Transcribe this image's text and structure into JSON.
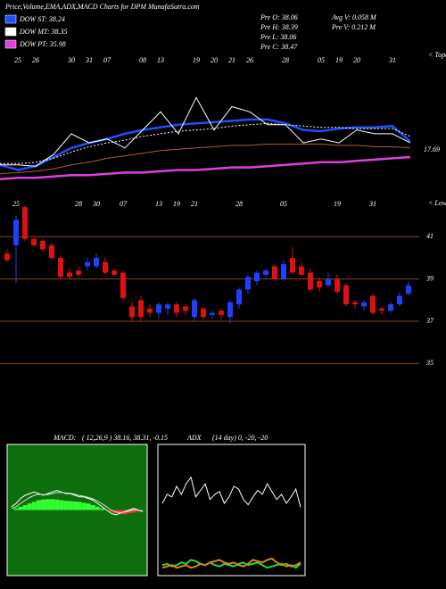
{
  "chart_data": [
    {
      "type": "line",
      "title": "Price,Volume,EMA,ADX,MACD Charts for DPM MunafaSutra.com",
      "categories": [
        null,
        "25",
        "26",
        null,
        "30",
        "31",
        "07",
        null,
        "08",
        "13",
        null,
        "19",
        "20",
        "21",
        "26",
        null,
        "28",
        null,
        "05",
        "19",
        "20",
        null,
        "31",
        null
      ],
      "ylim": [
        0,
        100
      ],
      "series": [
        {
          "name": "DOW ST: 38.24",
          "color": "#1e50ff",
          "style": "solid",
          "values": [
            14,
            10,
            13,
            20,
            27,
            31,
            34,
            38,
            41,
            43,
            45,
            46,
            47,
            48,
            49,
            49,
            46,
            41,
            40,
            42,
            43,
            43,
            44,
            32
          ]
        },
        {
          "name": "DOW MT: 38.35",
          "color": "#ffffff",
          "style": "dotted",
          "values": [
            15,
            15,
            16,
            19,
            24,
            28,
            31,
            33,
            36,
            38,
            40,
            41,
            42,
            44,
            45,
            46,
            45,
            44,
            43,
            43,
            42,
            42,
            42,
            36
          ]
        },
        {
          "name": "DOW PT: 35.98",
          "color": "#e040e0",
          "style": "solid",
          "values": [
            3,
            4,
            4,
            5,
            6,
            6,
            7,
            8,
            8,
            9,
            10,
            10,
            11,
            12,
            12,
            13,
            14,
            15,
            16,
            16,
            17,
            18,
            19,
            20
          ]
        },
        {
          "color": "#ffffff",
          "style": "solid",
          "values": [
            14,
            14,
            13,
            22,
            38,
            31,
            34,
            27,
            41,
            55,
            38,
            66,
            41,
            59,
            55,
            45,
            45,
            31,
            34,
            31,
            41,
            38,
            38,
            31
          ]
        },
        {
          "color": "#b06020",
          "style": "solid",
          "values": [
            7,
            8,
            9,
            11,
            14,
            16,
            19,
            21,
            23,
            25,
            26,
            27,
            28,
            29,
            29,
            30,
            30,
            30,
            30,
            29,
            29,
            28,
            28,
            27
          ]
        }
      ],
      "annotations": [
        "Pre  O: 38.06",
        "Pre  H: 38.39",
        "Pre  L: 38.06",
        "Pre  C: 38.47",
        "Avg V: 0.058  M",
        "Pre  V: 0.212  M"
      ],
      "level_label": "17.69",
      "top_label": "< Topa"
    },
    {
      "type": "candlestick",
      "categories": [
        null,
        "25",
        null,
        null,
        null,
        null,
        null,
        null,
        "28",
        null,
        "30",
        null,
        null,
        "07",
        null,
        null,
        null,
        "13",
        null,
        "19",
        null,
        "21",
        null,
        null,
        null,
        null,
        "28",
        null,
        null,
        null,
        null,
        "05",
        null,
        null,
        null,
        null,
        null,
        "19",
        null,
        null,
        null,
        "31",
        null,
        null,
        null,
        null
      ],
      "open": [
        40.2,
        40.6,
        42.4,
        40.9,
        40.8,
        40.6,
        40.0,
        39.3,
        39.4,
        39.6,
        39.6,
        39.8,
        39.4,
        39.3,
        37.7,
        38.0,
        37.6,
        37.4,
        37.6,
        37.8,
        37.7,
        37.2,
        37.6,
        37.3,
        37.5,
        37.2,
        37.8,
        38.5,
        38.9,
        39.2,
        39.6,
        39.0,
        40.0,
        39.6,
        39.3,
        38.9,
        38.7,
        39.0,
        38.7,
        37.9,
        37.7,
        38.2,
        37.6,
        37.5,
        37.8,
        38.3
      ],
      "high": [
        40.4,
        42.0,
        42.5,
        41.0,
        40.9,
        40.7,
        40.1,
        39.5,
        39.6,
        40.0,
        40.2,
        40.0,
        39.5,
        39.4,
        37.9,
        38.2,
        37.8,
        37.9,
        37.9,
        37.9,
        37.8,
        38.1,
        37.7,
        37.5,
        37.6,
        38.0,
        38.6,
        39.2,
        39.4,
        39.5,
        39.7,
        39.9,
        40.5,
        39.8,
        39.5,
        39.1,
        39.3,
        39.2,
        38.8,
        38.0,
        38.0,
        38.3,
        37.7,
        37.9,
        38.4,
        38.9
      ],
      "low": [
        39.8,
        38.8,
        40.8,
        40.5,
        40.3,
        39.9,
        39.0,
        39.0,
        39.1,
        39.4,
        39.5,
        39.2,
        39.1,
        38.0,
        37.0,
        37.0,
        37.2,
        37.1,
        37.3,
        37.2,
        37.3,
        37.0,
        37.1,
        37.1,
        37.1,
        36.9,
        37.6,
        38.3,
        38.7,
        39.0,
        38.9,
        38.9,
        39.2,
        39.1,
        38.4,
        38.4,
        38.6,
        38.3,
        37.7,
        37.6,
        37.5,
        37.3,
        37.3,
        37.4,
        37.7,
        38.2
      ],
      "close": [
        39.9,
        41.8,
        40.9,
        40.6,
        40.4,
        40.0,
        39.1,
        39.1,
        39.2,
        39.8,
        40.0,
        39.3,
        39.2,
        38.1,
        37.2,
        37.2,
        37.4,
        37.8,
        37.8,
        37.4,
        37.5,
        38.0,
        37.2,
        37.4,
        37.3,
        37.9,
        38.5,
        39.1,
        39.3,
        39.4,
        39.0,
        39.7,
        39.3,
        39.2,
        38.5,
        38.6,
        39.0,
        38.4,
        37.8,
        37.8,
        37.9,
        37.4,
        37.5,
        37.8,
        38.2,
        38.7
      ],
      "up_color": "#1e40ff",
      "down_color": "#e01010",
      "ylim": [
        33.2,
        42.7
      ],
      "yticks": [
        41,
        39,
        37,
        35
      ],
      "grid": true,
      "top_label": "< Lowes"
    },
    {
      "type": "macd",
      "title": "MACD:",
      "subtitle": "( 12,26,9 ) 38.16, 38.31, -0.15",
      "ylim": [
        -2,
        2
      ],
      "background": "#0c6e0c",
      "histogram": [
        0,
        0.05,
        0.1,
        0.15,
        0.2,
        0.25,
        0.3,
        0.32,
        0.33,
        0.33,
        0.32,
        0.3,
        0.28,
        0.27,
        0.26,
        0.25,
        0.22,
        0.2,
        0.15,
        0.1,
        0.05,
        0,
        -0.05,
        -0.1,
        -0.12,
        -0.13,
        -0.1,
        -0.08,
        -0.05,
        -0.02
      ],
      "series": [
        {
          "color": "#ffffff",
          "values": [
            0.1,
            0.2,
            0.35,
            0.45,
            0.5,
            0.55,
            0.5,
            0.45,
            0.5,
            0.55,
            0.6,
            0.55,
            0.5,
            0.5,
            0.45,
            0.4,
            0.4,
            0.35,
            0.3,
            0.2,
            0.1,
            0.0,
            -0.1,
            -0.15,
            -0.1,
            -0.05,
            0,
            0.05,
            0,
            -0.05
          ]
        },
        {
          "color": "#dddddd",
          "values": [
            0.05,
            0.1,
            0.2,
            0.3,
            0.38,
            0.45,
            0.48,
            0.47,
            0.47,
            0.5,
            0.53,
            0.54,
            0.52,
            0.51,
            0.48,
            0.44,
            0.42,
            0.38,
            0.34,
            0.27,
            0.19,
            0.1,
            0.0,
            -0.06,
            -0.08,
            -0.06,
            -0.03,
            0.01,
            0.0,
            -0.03
          ]
        }
      ]
    },
    {
      "type": "adx",
      "title": "ADX",
      "subtitle": "(14 day) 0, -20, -20",
      "ylim": [
        0,
        100
      ],
      "background": "#000000",
      "series": [
        {
          "color": "#ffffff",
          "values": [
            55,
            62,
            60,
            68,
            62,
            70,
            75,
            60,
            65,
            70,
            58,
            62,
            64,
            55,
            60,
            68,
            66,
            58,
            54,
            60,
            65,
            62,
            70,
            64,
            58,
            62,
            55,
            60,
            66,
            52
          ]
        },
        {
          "color": "#20e020",
          "values": [
            8,
            9,
            7,
            8,
            10,
            9,
            12,
            11,
            9,
            8,
            10,
            8,
            7,
            9,
            8,
            7,
            9,
            10,
            8,
            9,
            10,
            8,
            6,
            7,
            8,
            9,
            7,
            8,
            6,
            9
          ]
        },
        {
          "color": "#e08020",
          "values": [
            6,
            7,
            8,
            6,
            7,
            8,
            6,
            7,
            9,
            8,
            10,
            11,
            12,
            10,
            9,
            10,
            8,
            7,
            9,
            12,
            11,
            10,
            12,
            13,
            10,
            8,
            9,
            7,
            8,
            10
          ]
        }
      ]
    }
  ]
}
